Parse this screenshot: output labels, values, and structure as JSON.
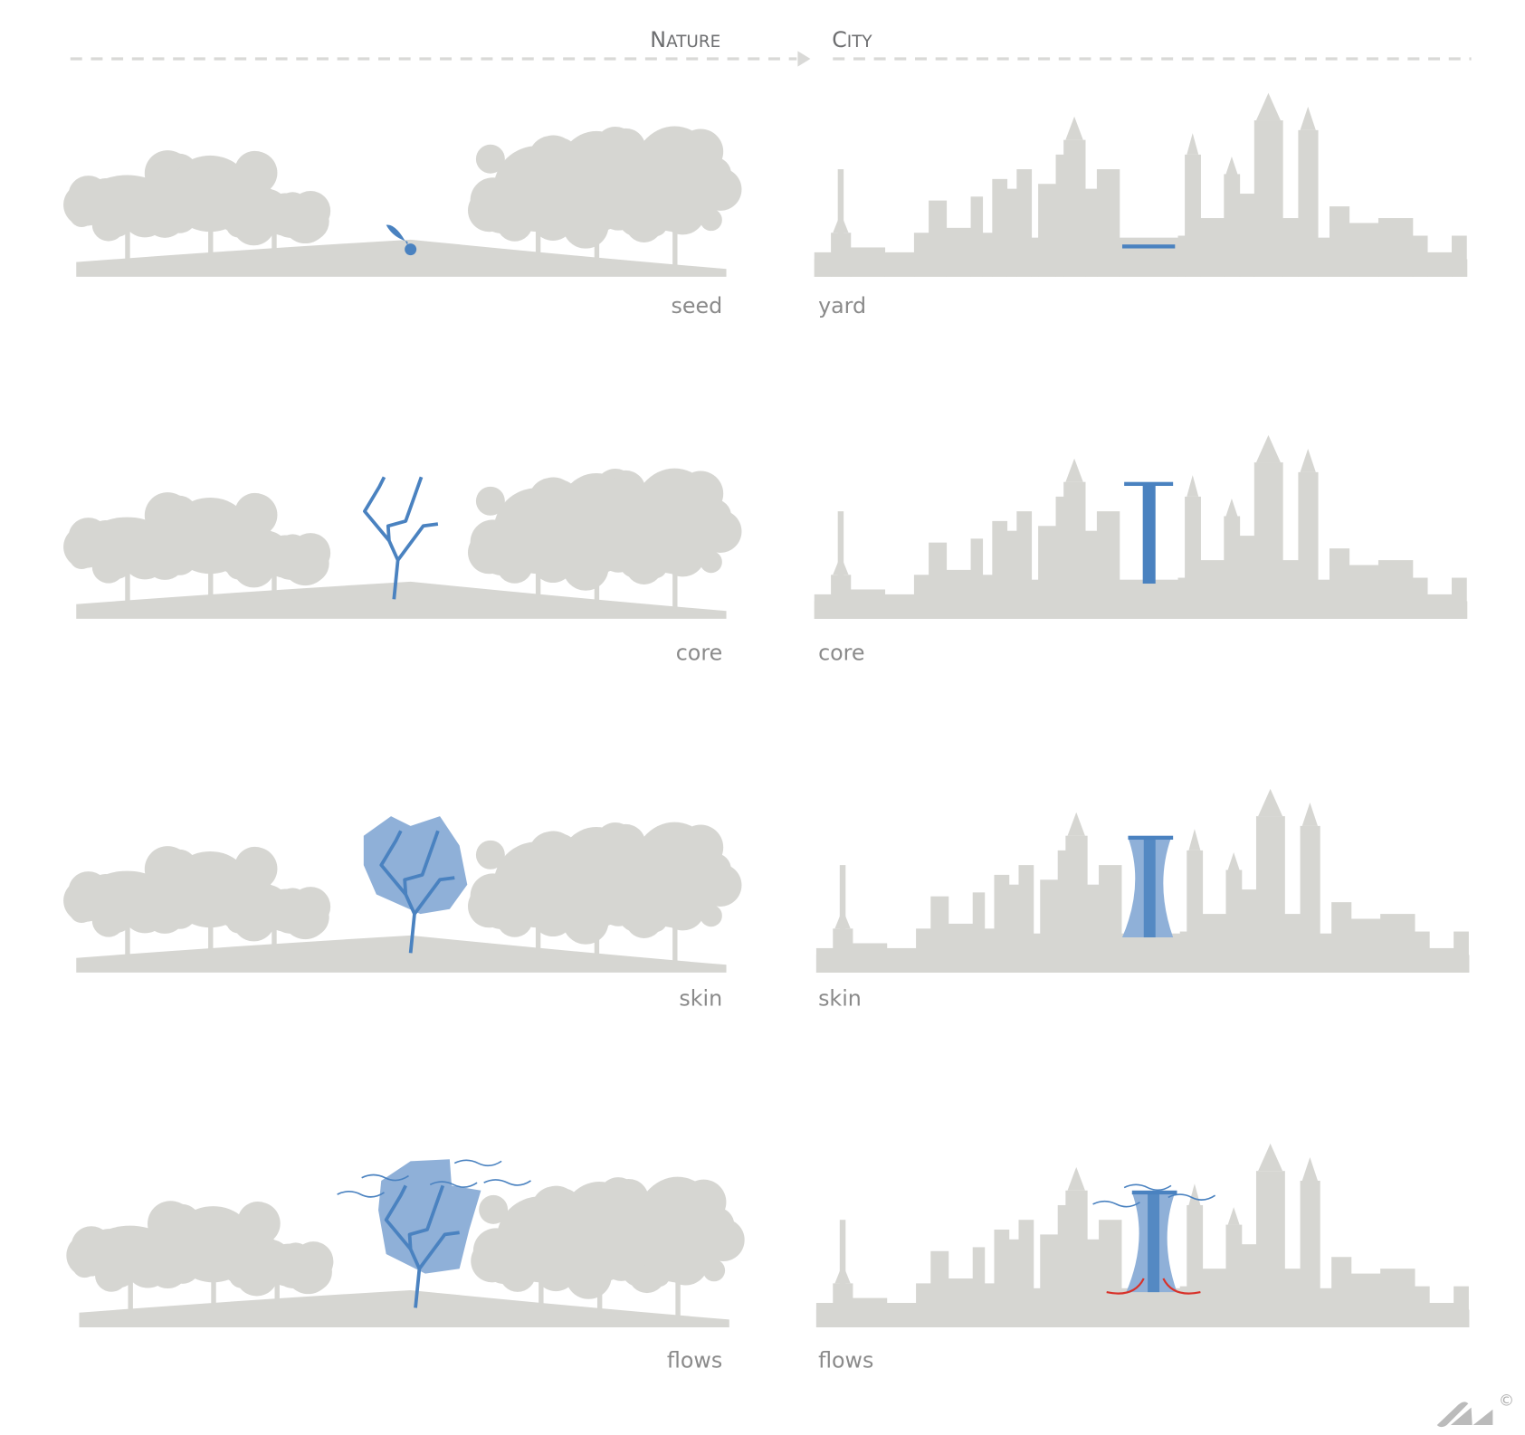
{
  "header": {
    "left_initial": "N",
    "left_rest": "ATURE",
    "right_initial": "C",
    "right_rest": "ITY"
  },
  "rows": [
    {
      "nature_label": "seed",
      "city_label": "yard",
      "stage": "seed"
    },
    {
      "nature_label": "core",
      "city_label": "core",
      "stage": "core"
    },
    {
      "nature_label": "skin",
      "city_label": "skin",
      "stage": "skin"
    },
    {
      "nature_label": "flows",
      "city_label": "flows",
      "stage": "flows"
    }
  ],
  "colors": {
    "silhouette": "#d6d6d2",
    "accent": "#4a82c0",
    "accent_light": "#8fb0d8",
    "flow_arrow": "#d8322a",
    "dash": "#d9d9d7"
  },
  "logo": {
    "copyright_symbol": "©"
  }
}
